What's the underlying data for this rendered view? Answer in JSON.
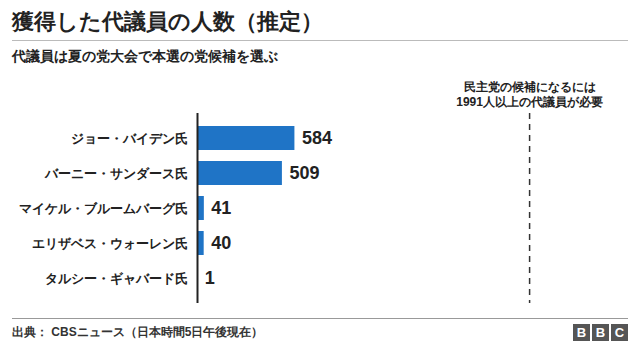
{
  "chart_data": {
    "type": "bar",
    "orientation": "horizontal",
    "title": "獲得した代議員の人数（推定）",
    "subtitle": "代議員は夏の党大会で本選の党候補を選ぶ",
    "categories": [
      "ジョー・バイデン氏",
      "バーニー・サンダース氏",
      "マイケル・ブルームバーグ氏",
      "エリザベス・ウォーレン氏",
      "タルシー・ギャバード氏"
    ],
    "values": [
      584,
      509,
      41,
      40,
      1
    ],
    "color": "#1f74c6",
    "xlim": [
      0,
      2500
    ],
    "tick_labels": "y",
    "grid": false,
    "data_labels": true,
    "threshold": {
      "value": 1991,
      "line_style": "dashed",
      "label": [
        "民主党の候補になるには",
        "1991人以上の代議員が必要"
      ]
    },
    "caption": "出典： CBSニュース（日本時間5日午後現在）",
    "logo": "BBC"
  }
}
